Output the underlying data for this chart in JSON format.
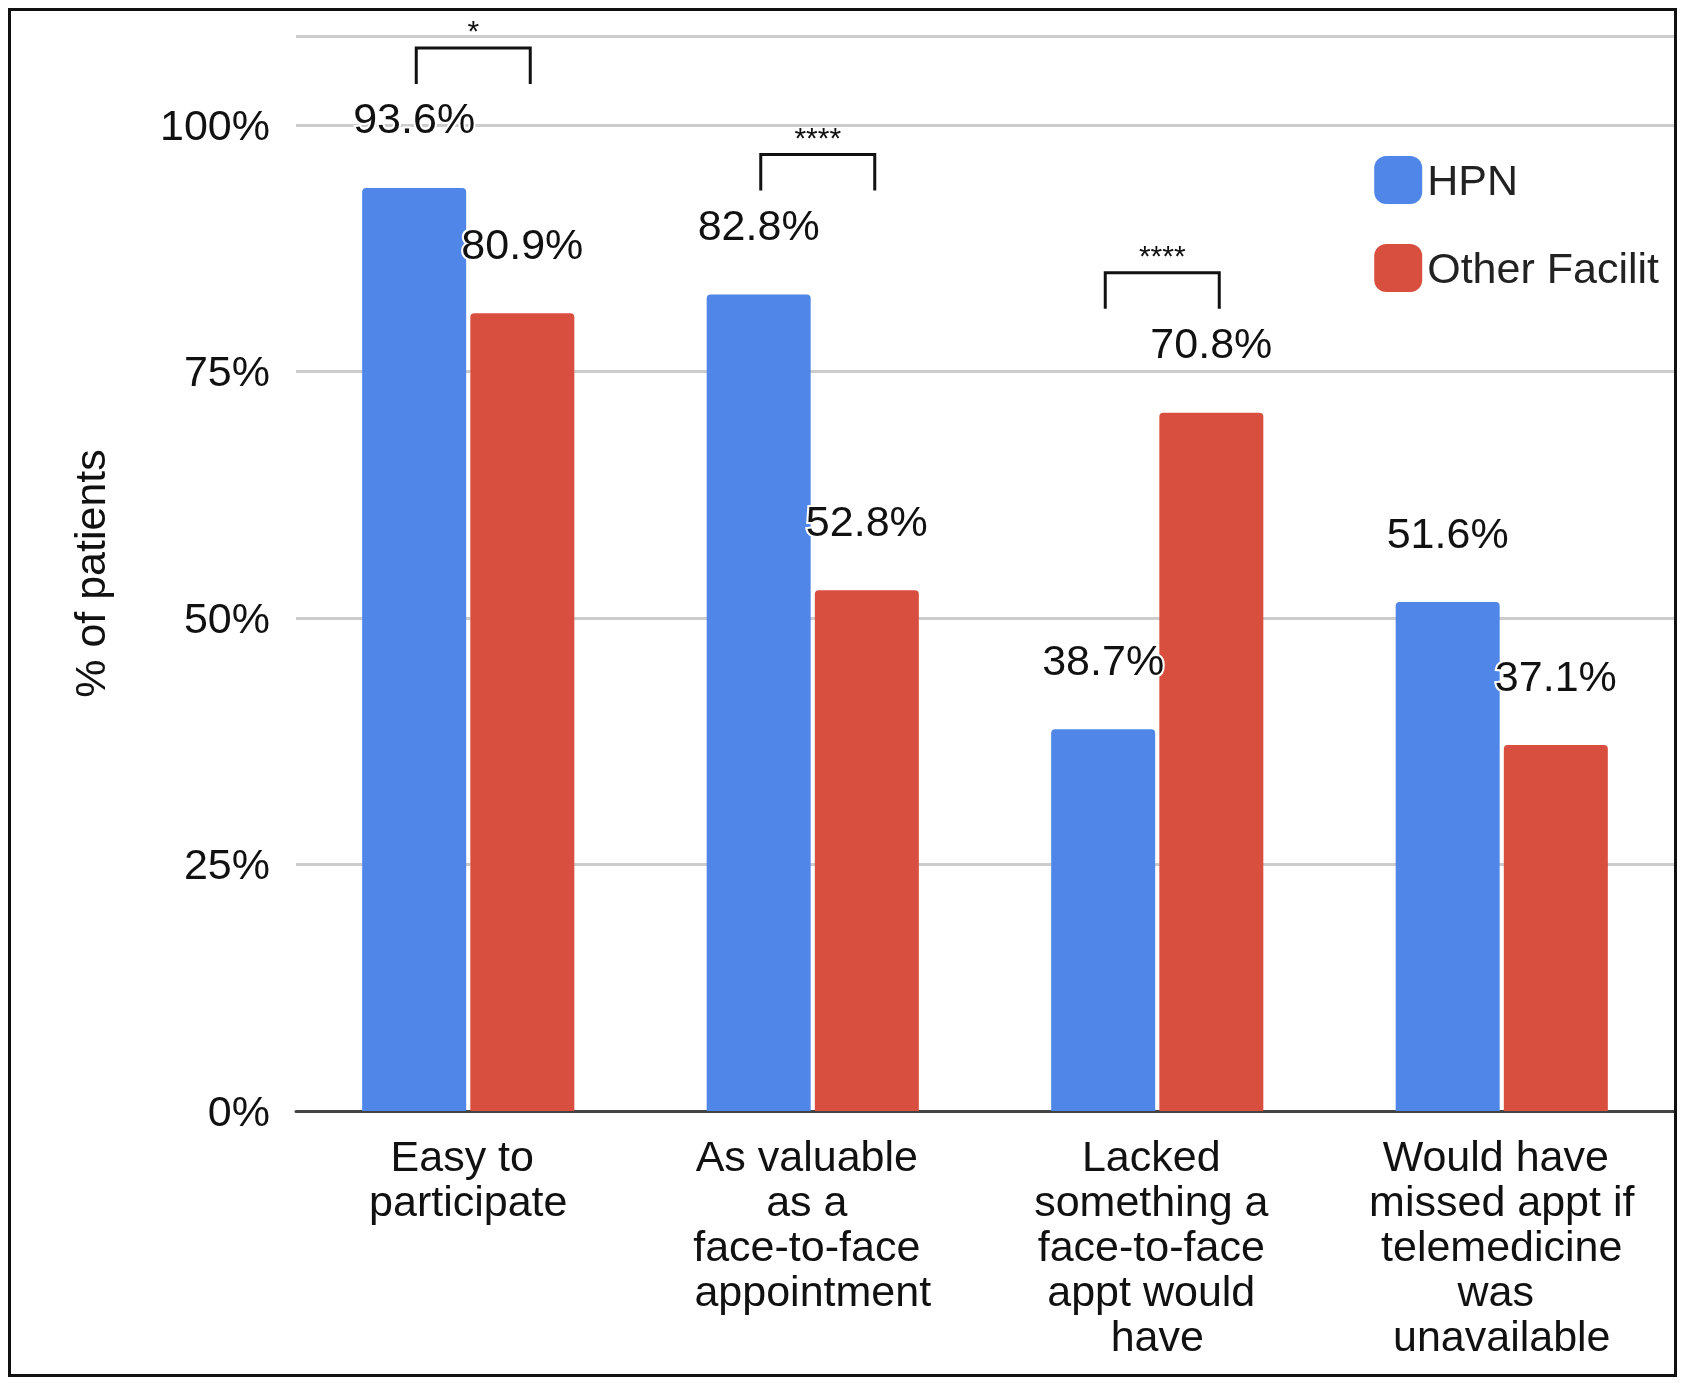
{
  "chart_data": {
    "type": "bar",
    "ylabel": "% of patients",
    "categories": [
      "Easy to participate",
      "As valuable as a face-to-face appointment",
      "Lacked something a face-to-face appt would have",
      "Would have missed appt if telemedicine was unavailable"
    ],
    "series": [
      {
        "name": "HPN",
        "color": "#4f86e8",
        "values": [
          93.6,
          82.8,
          38.7,
          51.6
        ],
        "value_labels": [
          "93.6%",
          "82.8%",
          "38.7%",
          "51.6%"
        ]
      },
      {
        "name": "Other Facilit",
        "color": "#d94f3f",
        "values": [
          80.9,
          52.8,
          70.8,
          37.1
        ],
        "value_labels": [
          "80.9%",
          "52.8%",
          "70.8%",
          "37.1%"
        ]
      }
    ],
    "ylim": [
      0,
      109
    ],
    "yticks": [
      {
        "value": 0,
        "label": "0%"
      },
      {
        "value": 25,
        "label": "25%"
      },
      {
        "value": 50,
        "label": "50%"
      },
      {
        "value": 75,
        "label": "75%"
      },
      {
        "value": 100,
        "label": "100%"
      }
    ],
    "grid": "y",
    "legend": "top right",
    "annotations": [
      "*",
      "****",
      "****"
    ]
  }
}
